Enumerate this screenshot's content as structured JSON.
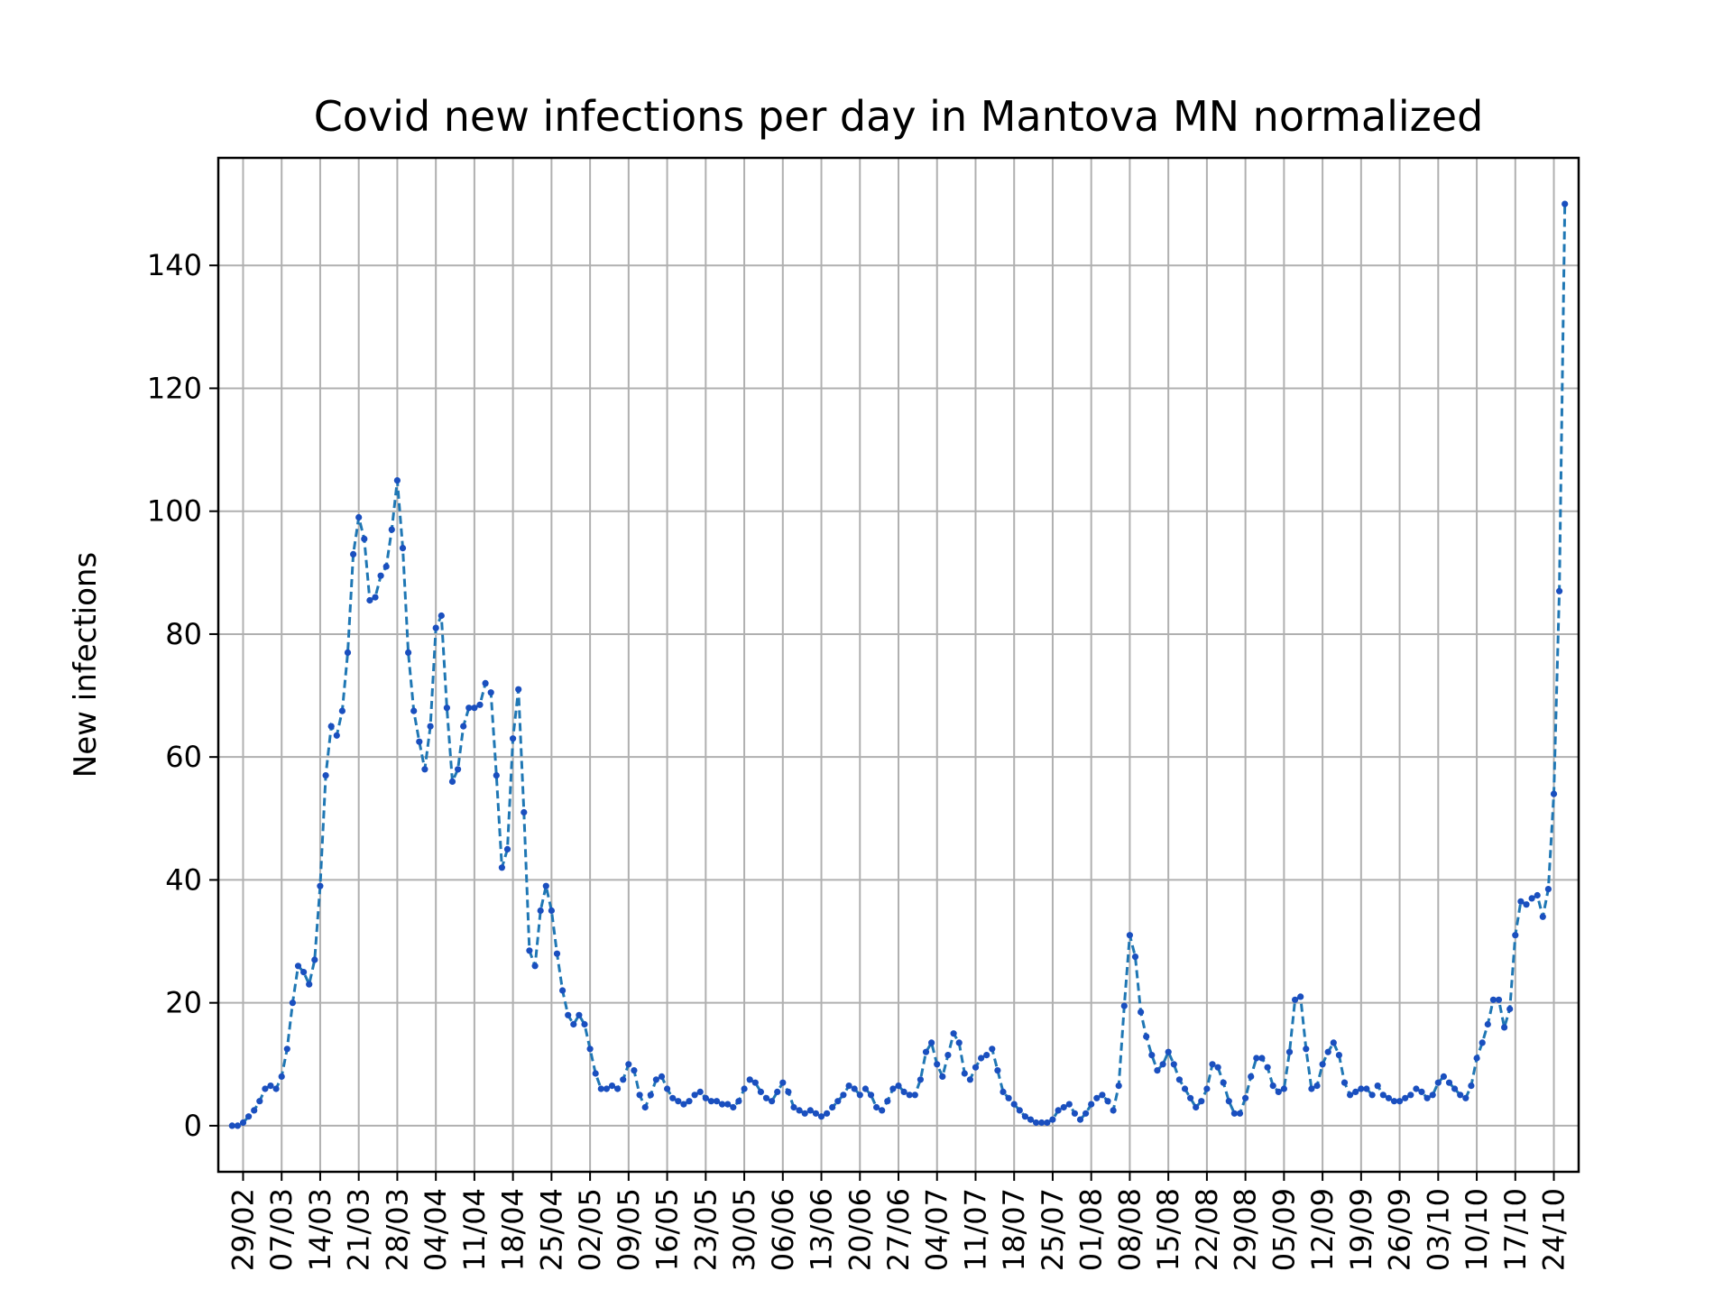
{
  "chart_data": {
    "type": "line",
    "title": "Covid new infections per day in Mantova MN normalized",
    "xlabel": "",
    "ylabel": "New infections",
    "ylim": [
      -7.5,
      157.5
    ],
    "yticks": [
      0,
      20,
      40,
      60,
      80,
      100,
      120,
      140
    ],
    "x_start": "2020-02-27",
    "xticks": [
      "29/02",
      "07/03",
      "14/03",
      "21/03",
      "28/03",
      "04/04",
      "11/04",
      "18/04",
      "25/04",
      "02/05",
      "09/05",
      "16/05",
      "23/05",
      "30/05",
      "06/06",
      "13/06",
      "20/06",
      "27/06",
      "04/07",
      "11/07",
      "18/07",
      "25/07",
      "01/08",
      "08/08",
      "15/08",
      "22/08",
      "29/08",
      "05/09",
      "12/09",
      "19/09",
      "26/09",
      "03/10",
      "10/10",
      "17/10",
      "24/10"
    ],
    "grid": true,
    "line_style": "dashed",
    "marker": "dot",
    "colors": {
      "line": "#1f77b4",
      "marker": "#1a4fbf",
      "grid": "#b0b0b0"
    },
    "values": [
      0,
      0,
      0.5,
      1.5,
      2.5,
      4,
      6,
      6.5,
      6,
      8,
      12.5,
      20,
      26,
      25,
      23,
      27,
      39,
      57,
      65,
      63.5,
      67.5,
      77,
      93,
      99,
      95.5,
      85.5,
      86,
      89.5,
      91,
      97,
      105,
      94,
      77,
      67.5,
      62.5,
      58,
      65,
      81,
      83,
      68,
      56,
      58,
      65,
      68,
      68,
      68.5,
      72,
      70.5,
      57,
      42,
      45,
      63,
      71,
      51,
      28.5,
      26,
      35,
      39,
      35,
      28,
      22,
      18,
      16.5,
      18,
      16.5,
      12.5,
      8.5,
      6,
      6,
      6.5,
      6,
      7.5,
      10,
      9,
      5,
      3,
      5,
      7.5,
      8,
      6,
      4.5,
      4,
      3.5,
      4,
      5,
      5.5,
      4.5,
      4,
      4,
      3.5,
      3.5,
      3,
      4,
      6,
      7.5,
      7,
      5.5,
      4.5,
      4,
      5.5,
      7,
      5.5,
      3,
      2.5,
      2,
      2.5,
      2,
      1.5,
      2,
      3,
      4,
      5,
      6.5,
      6,
      5,
      6,
      5,
      3,
      2.5,
      4,
      6,
      6.5,
      5.5,
      5,
      5,
      7.5,
      12,
      13.5,
      10,
      8,
      11.5,
      15,
      13.5,
      8.5,
      7.5,
      9.5,
      11,
      11.5,
      12.5,
      9,
      5.5,
      4.5,
      3.5,
      2.5,
      1.5,
      1,
      0.5,
      0.5,
      0.5,
      1,
      2.5,
      3,
      3.5,
      2,
      1,
      2,
      3.5,
      4.5,
      5,
      4,
      2.5,
      6.5,
      19.5,
      31,
      27.5,
      18.5,
      14.5,
      11.5,
      9,
      10,
      12,
      10,
      7.5,
      6,
      4.5,
      3,
      4,
      6,
      10,
      9.5,
      7,
      4,
      2,
      2,
      4.5,
      8,
      11,
      11,
      9.5,
      6.5,
      5.5,
      6,
      12,
      20.5,
      21,
      12.5,
      6,
      6.5,
      10,
      12,
      13.5,
      11.5,
      7,
      5,
      5.5,
      6,
      6,
      5,
      6.5,
      5,
      4.5,
      4,
      4,
      4.5,
      5,
      6,
      5.5,
      4.5,
      5,
      7,
      8,
      7,
      6,
      5,
      4.5,
      6.5,
      11,
      13.5,
      16.5,
      20.5,
      20.5,
      16,
      19,
      31,
      36.5,
      36,
      37,
      37.5,
      34,
      38.5,
      54,
      87,
      150
    ]
  }
}
